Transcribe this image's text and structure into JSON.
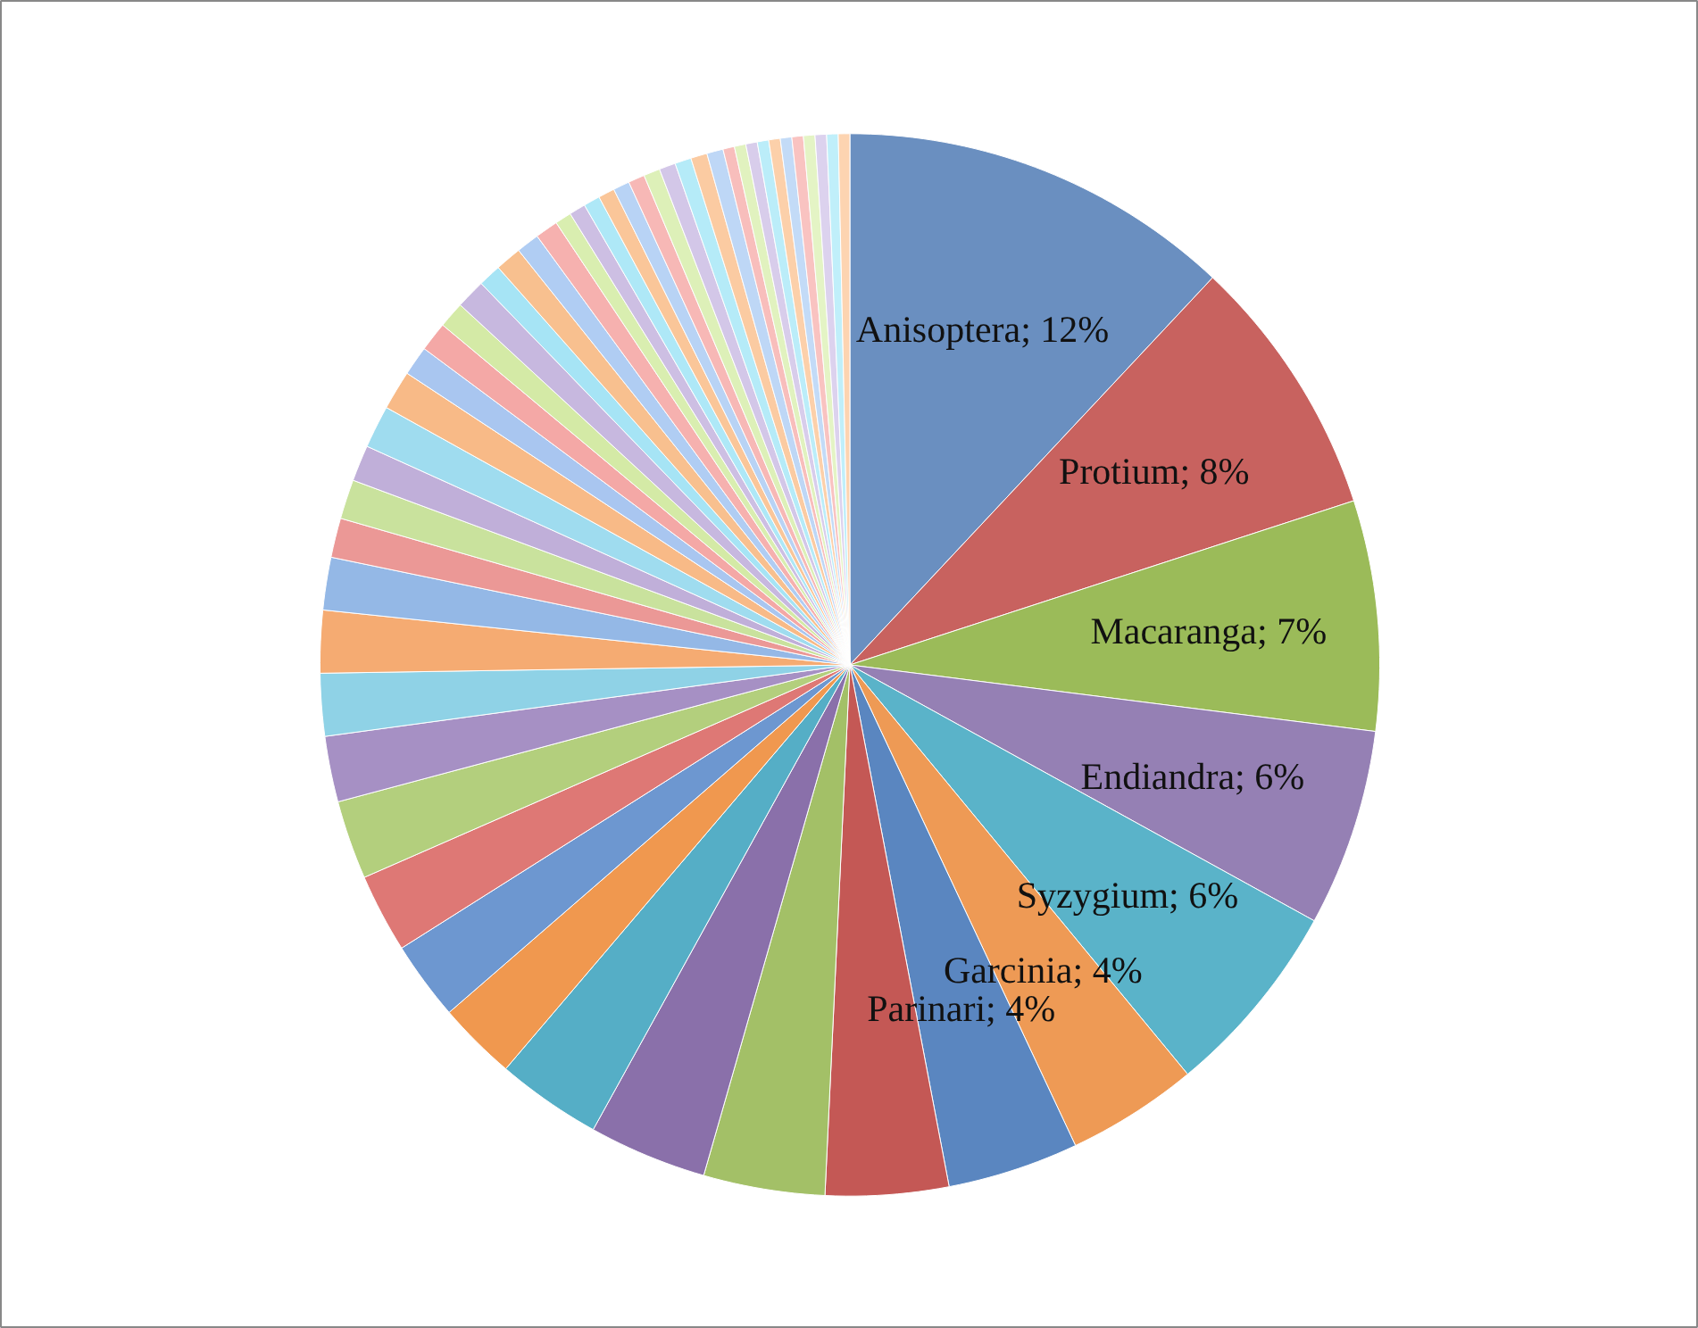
{
  "chart_data": {
    "type": "pie",
    "categories": [
      "Anisoptera",
      "Protium",
      "Macaranga",
      "Endiandra",
      "Syzygium",
      "Garcinia",
      "Parinari",
      null,
      null,
      null,
      null,
      null,
      null,
      null,
      null,
      null,
      null,
      null,
      null,
      null,
      null,
      null,
      null,
      null,
      null,
      null,
      null,
      null,
      null,
      null,
      null,
      null,
      null,
      null,
      null,
      null,
      null,
      null,
      null,
      null,
      null,
      null,
      null,
      null,
      null,
      null,
      null,
      null,
      null,
      null,
      null,
      null,
      null,
      null
    ],
    "values": [
      12,
      8,
      7,
      6,
      6,
      4,
      4,
      3.75,
      3.7,
      3.6,
      3.2,
      2.4,
      2.4,
      2.4,
      2.4,
      2.0,
      1.9,
      1.9,
      1.6,
      1.2,
      1.2,
      1.1,
      1.3,
      1.2,
      0.9,
      0.9,
      0.8,
      0.9,
      0.7,
      0.8,
      0.7,
      0.7,
      0.5,
      0.5,
      0.5,
      0.5,
      0.5,
      0.5,
      0.5,
      0.5,
      0.5,
      0.5,
      0.5,
      0.35,
      0.35,
      0.35,
      0.35,
      0.35,
      0.35,
      0.35,
      0.35,
      0.35,
      0.35,
      0.35
    ],
    "value_labels": [
      "12%",
      "8%",
      "7%",
      "6%",
      "6%",
      "4%",
      "4%",
      null,
      null,
      null,
      null,
      null,
      null,
      null,
      null,
      null,
      null,
      null,
      null,
      null,
      null,
      null,
      null,
      null,
      null,
      null,
      null,
      null,
      null,
      null,
      null,
      null,
      null,
      null,
      null,
      null,
      null,
      null,
      null,
      null,
      null,
      null,
      null,
      null,
      null,
      null,
      null,
      null,
      null,
      null,
      null,
      null,
      null,
      null
    ],
    "colors": [
      "#6a8fc0",
      "#c8625f",
      "#9bbb59",
      "#9580b4",
      "#5ab3c9",
      "#ee9a55",
      "#5a86c0",
      "#c45855",
      "#a3c067",
      "#8a70aa",
      "#55aec6",
      "#f0984f",
      "#6d97d0",
      "#de7875",
      "#b3cf7d",
      "#a690c4",
      "#8fd2e6",
      "#f5ab72",
      "#94b8e6",
      "#eb9896",
      "#c9e29d",
      "#c0afd9",
      "#9fdcef",
      "#f8ba87",
      "#a9c6f0",
      "#f4a8a6",
      "#d4eaa6",
      "#c7b8df",
      "#a6e4f5",
      "#f8c08f",
      "#b0cdf3",
      "#f6b1af",
      "#d9eeb0",
      "#cdbfe3",
      "#aee8f7",
      "#fac699",
      "#b8d3f5",
      "#f7b8b6",
      "#ddf0b8",
      "#d3c7e8",
      "#b5ebf8",
      "#fbcba2",
      "#bed7f6",
      "#f8bebc",
      "#e1f2bf",
      "#d8cdeb",
      "#bbedf9",
      "#fcd0aa",
      "#c3dbf7",
      "#f9c3c1",
      "#e4f4c5",
      "#dcd2ee",
      "#c0effa",
      "#fdd4b1"
    ]
  }
}
